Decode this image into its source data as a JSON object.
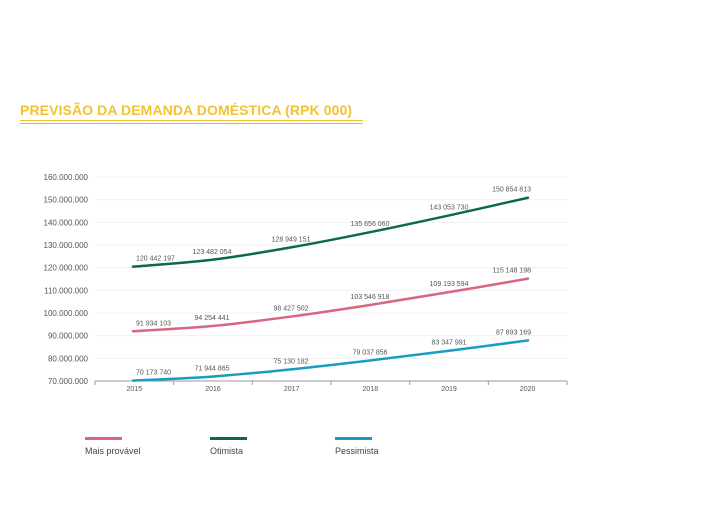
{
  "title": "PREVISÃO DA DEMANDA DOMÉSTICA (RPK 000)",
  "colors": {
    "title": "#f2c230",
    "mais_provavel": "#d9667e",
    "otimista": "#0d6b40",
    "pessimista": "#1a9cc2",
    "axis_text": "#555555"
  },
  "chart_data": {
    "type": "line",
    "title": "PREVISÃO DA DEMANDA DOMÉSTICA (RPK 000)",
    "xlabel": "",
    "ylabel": "",
    "categories": [
      "2015",
      "2016",
      "2017",
      "2018",
      "2019",
      "2020"
    ],
    "ylim": [
      70000000,
      160000000
    ],
    "yticks": [
      "160.000.000",
      "150.000.000",
      "140.000.000",
      "130.000.000",
      "120.000.000",
      "110.000.000",
      "100.000.000",
      "90.000.000",
      "80.000.000",
      "70.000.000"
    ],
    "ytick_values": [
      160000000,
      150000000,
      140000000,
      130000000,
      120000000,
      110000000,
      100000000,
      90000000,
      80000000,
      70000000
    ],
    "grid": true,
    "legend": "bottom",
    "series": [
      {
        "name": "Mais provável",
        "color": "#d9667e",
        "values": [
          91934103,
          94254441,
          98427502,
          103546918,
          109193594,
          115148198
        ],
        "labels": [
          "91 934 103",
          "94 254 441",
          "98 427 502",
          "103 546 918",
          "109 193 594",
          "115 148 198"
        ]
      },
      {
        "name": "Otimista",
        "color": "#0d6b40",
        "values": [
          120442197,
          123482054,
          128949151,
          135656060,
          143053730,
          150854813
        ],
        "labels": [
          "120 442 197",
          "123 482 054",
          "128 949 151",
          "135 656 060",
          "143 053 730",
          "150 854 813"
        ]
      },
      {
        "name": "Pessimista",
        "color": "#1a9cc2",
        "values": [
          70173740,
          71944865,
          75130182,
          79037856,
          83347991,
          87893169
        ],
        "labels": [
          "70 173 740",
          "71 944 865",
          "75 130 182",
          "79 037 856",
          "83 347 991",
          "87 893 169"
        ]
      }
    ]
  }
}
